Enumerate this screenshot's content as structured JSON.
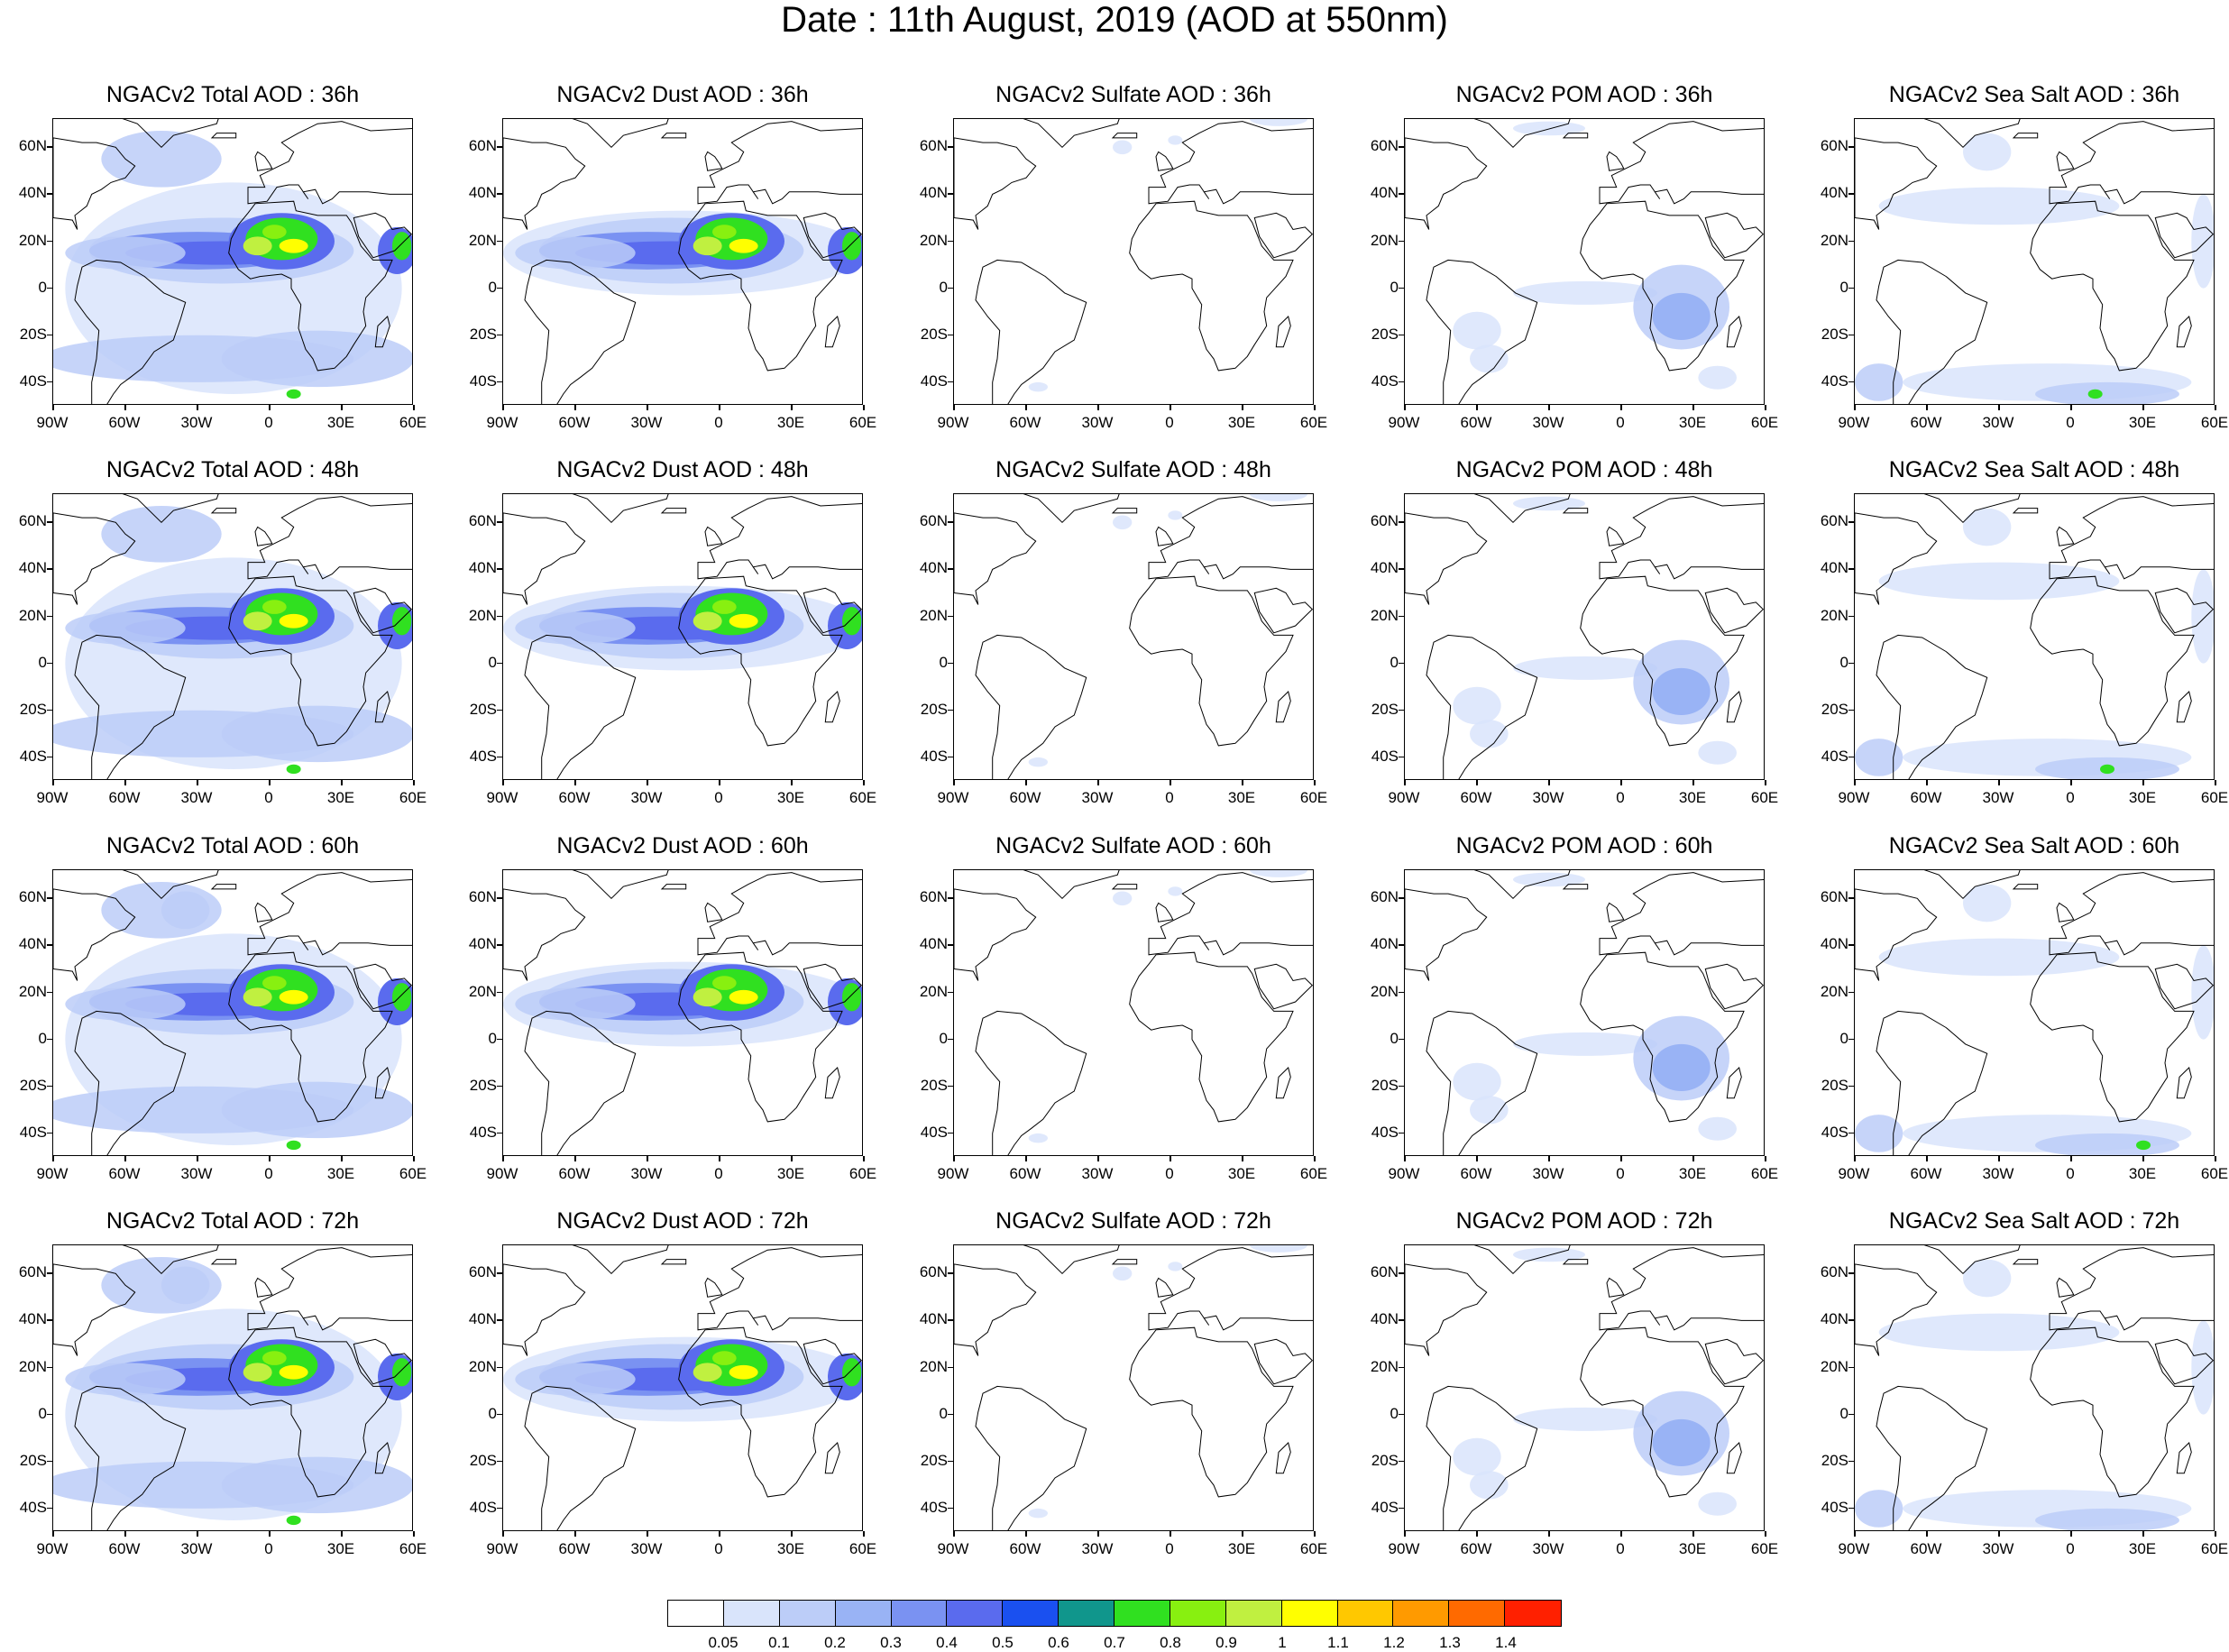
{
  "title": "Date : 11th August, 2019 (AOD at 550nm)",
  "lat_labels": [
    "60N",
    "40N",
    "20N",
    "0",
    "20S",
    "40S"
  ],
  "lon_labels": [
    "90W",
    "60W",
    "30W",
    "0",
    "30E",
    "60E"
  ],
  "species": [
    {
      "key": "total",
      "name": "NGACv2 Total AOD"
    },
    {
      "key": "dust",
      "name": "NGACv2 Dust AOD"
    },
    {
      "key": "sulfate",
      "name": "NGACv2 Sulfate AOD"
    },
    {
      "key": "pom",
      "name": "NGACv2 POM AOD"
    },
    {
      "key": "seasalt",
      "name": "NGACv2 Sea Salt AOD"
    }
  ],
  "panel_titles": [
    [
      "NGACv2 Total AOD : 36h",
      "NGACv2 Dust AOD : 36h",
      "NGACv2 Sulfate AOD : 36h",
      "NGACv2 POM AOD : 36h",
      "NGACv2 Sea Salt AOD : 36h"
    ],
    [
      "NGACv2 Total AOD : 48h",
      "NGACv2 Dust AOD : 48h",
      "NGACv2 Sulfate AOD : 48h",
      "NGACv2 POM AOD : 48h",
      "NGACv2 Sea Salt AOD : 48h"
    ],
    [
      "NGACv2 Total AOD : 60h",
      "NGACv2 Dust AOD : 60h",
      "NGACv2 Sulfate AOD : 60h",
      "NGACv2 POM AOD : 60h",
      "NGACv2 Sea Salt AOD : 60h"
    ],
    [
      "NGACv2 Total AOD : 72h",
      "NGACv2 Dust AOD : 72h",
      "NGACv2 Sulfate AOD : 72h",
      "NGACv2 POM AOD : 72h",
      "NGACv2 Sea Salt  AOD : 72h"
    ]
  ],
  "colorbar": {
    "labels": [
      "0.05",
      "0.1",
      "0.2",
      "0.3",
      "0.4",
      "0.5",
      "0.6",
      "0.7",
      "0.8",
      "0.9",
      "1",
      "1.1",
      "1.2",
      "1.3",
      "1.4"
    ],
    "colors": [
      "#ffffff",
      "#d9e4fb",
      "#bccdf8",
      "#99b3f5",
      "#7a92f2",
      "#5a6bee",
      "#1a50f0",
      "#10968c",
      "#30e020",
      "#88f010",
      "#c0f040",
      "#ffff00",
      "#ffc800",
      "#ff9a00",
      "#ff6a00",
      "#ff2000"
    ]
  },
  "accent": {
    "coast": "#000000",
    "frame": "#000000"
  }
}
